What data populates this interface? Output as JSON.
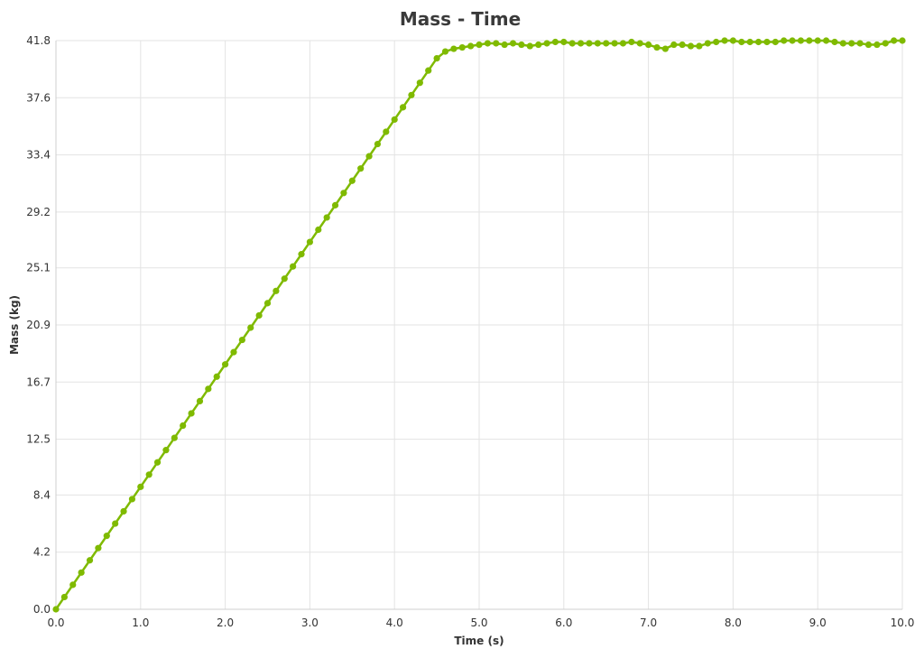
{
  "chart_data": {
    "type": "line",
    "title": "Mass - Time",
    "xlabel": "Time (s)",
    "ylabel": "Mass (kg)",
    "xlim": [
      0.0,
      10.0
    ],
    "ylim": [
      0.0,
      41.8
    ],
    "x_ticks": [
      "0.0",
      "1.0",
      "2.0",
      "3.0",
      "4.0",
      "5.0",
      "6.0",
      "7.0",
      "8.0",
      "9.0",
      "10.0"
    ],
    "y_ticks": [
      "0.0",
      "4.2",
      "8.4",
      "12.5",
      "16.7",
      "20.9",
      "25.1",
      "29.2",
      "33.4",
      "37.6",
      "41.8"
    ],
    "grid": true,
    "legend": "none",
    "series": [
      {
        "color": "#7fba00",
        "x": [
          0.0,
          0.1,
          0.2,
          0.3,
          0.4,
          0.5,
          0.6,
          0.7,
          0.8,
          0.9,
          1.0,
          1.1,
          1.2,
          1.3,
          1.4,
          1.5,
          1.6,
          1.7,
          1.8,
          1.9,
          2.0,
          2.1,
          2.2,
          2.3,
          2.4,
          2.5,
          2.6,
          2.7,
          2.8,
          2.9,
          3.0,
          3.1,
          3.2,
          3.3,
          3.4,
          3.5,
          3.6,
          3.7,
          3.8,
          3.9,
          4.0,
          4.1,
          4.2,
          4.3,
          4.4,
          4.5,
          4.6,
          4.7,
          4.8,
          4.9,
          5.0,
          5.1,
          5.2,
          5.3,
          5.4,
          5.5,
          5.6,
          5.7,
          5.8,
          5.9,
          6.0,
          6.1,
          6.2,
          6.3,
          6.4,
          6.5,
          6.6,
          6.7,
          6.8,
          6.9,
          7.0,
          7.1,
          7.2,
          7.3,
          7.4,
          7.5,
          7.6,
          7.7,
          7.8,
          7.9,
          8.0,
          8.1,
          8.2,
          8.3,
          8.4,
          8.5,
          8.6,
          8.7,
          8.8,
          8.9,
          9.0,
          9.1,
          9.2,
          9.3,
          9.4,
          9.5,
          9.6,
          9.7,
          9.8,
          9.9,
          10.0
        ],
        "values": [
          0.0,
          0.9,
          1.8,
          2.7,
          3.6,
          4.5,
          5.4,
          6.3,
          7.2,
          8.1,
          9.0,
          9.9,
          10.8,
          11.7,
          12.6,
          13.5,
          14.4,
          15.3,
          16.2,
          17.1,
          18.0,
          18.9,
          19.8,
          20.7,
          21.6,
          22.5,
          23.4,
          24.3,
          25.2,
          26.1,
          27.0,
          27.9,
          28.8,
          29.7,
          30.6,
          31.5,
          32.4,
          33.3,
          34.2,
          35.1,
          36.0,
          36.9,
          37.8,
          38.7,
          39.6,
          40.5,
          41.0,
          41.2,
          41.3,
          41.4,
          41.5,
          41.6,
          41.6,
          41.5,
          41.6,
          41.5,
          41.4,
          41.5,
          41.6,
          41.7,
          41.7,
          41.6,
          41.6,
          41.6,
          41.6,
          41.6,
          41.6,
          41.6,
          41.7,
          41.6,
          41.5,
          41.3,
          41.2,
          41.5,
          41.5,
          41.4,
          41.4,
          41.6,
          41.7,
          41.8,
          41.8,
          41.7,
          41.7,
          41.7,
          41.7,
          41.7,
          41.8,
          41.8,
          41.8,
          41.8,
          41.8,
          41.8,
          41.7,
          41.6,
          41.6,
          41.6,
          41.5,
          41.5,
          41.6,
          41.8,
          41.8
        ]
      }
    ]
  }
}
